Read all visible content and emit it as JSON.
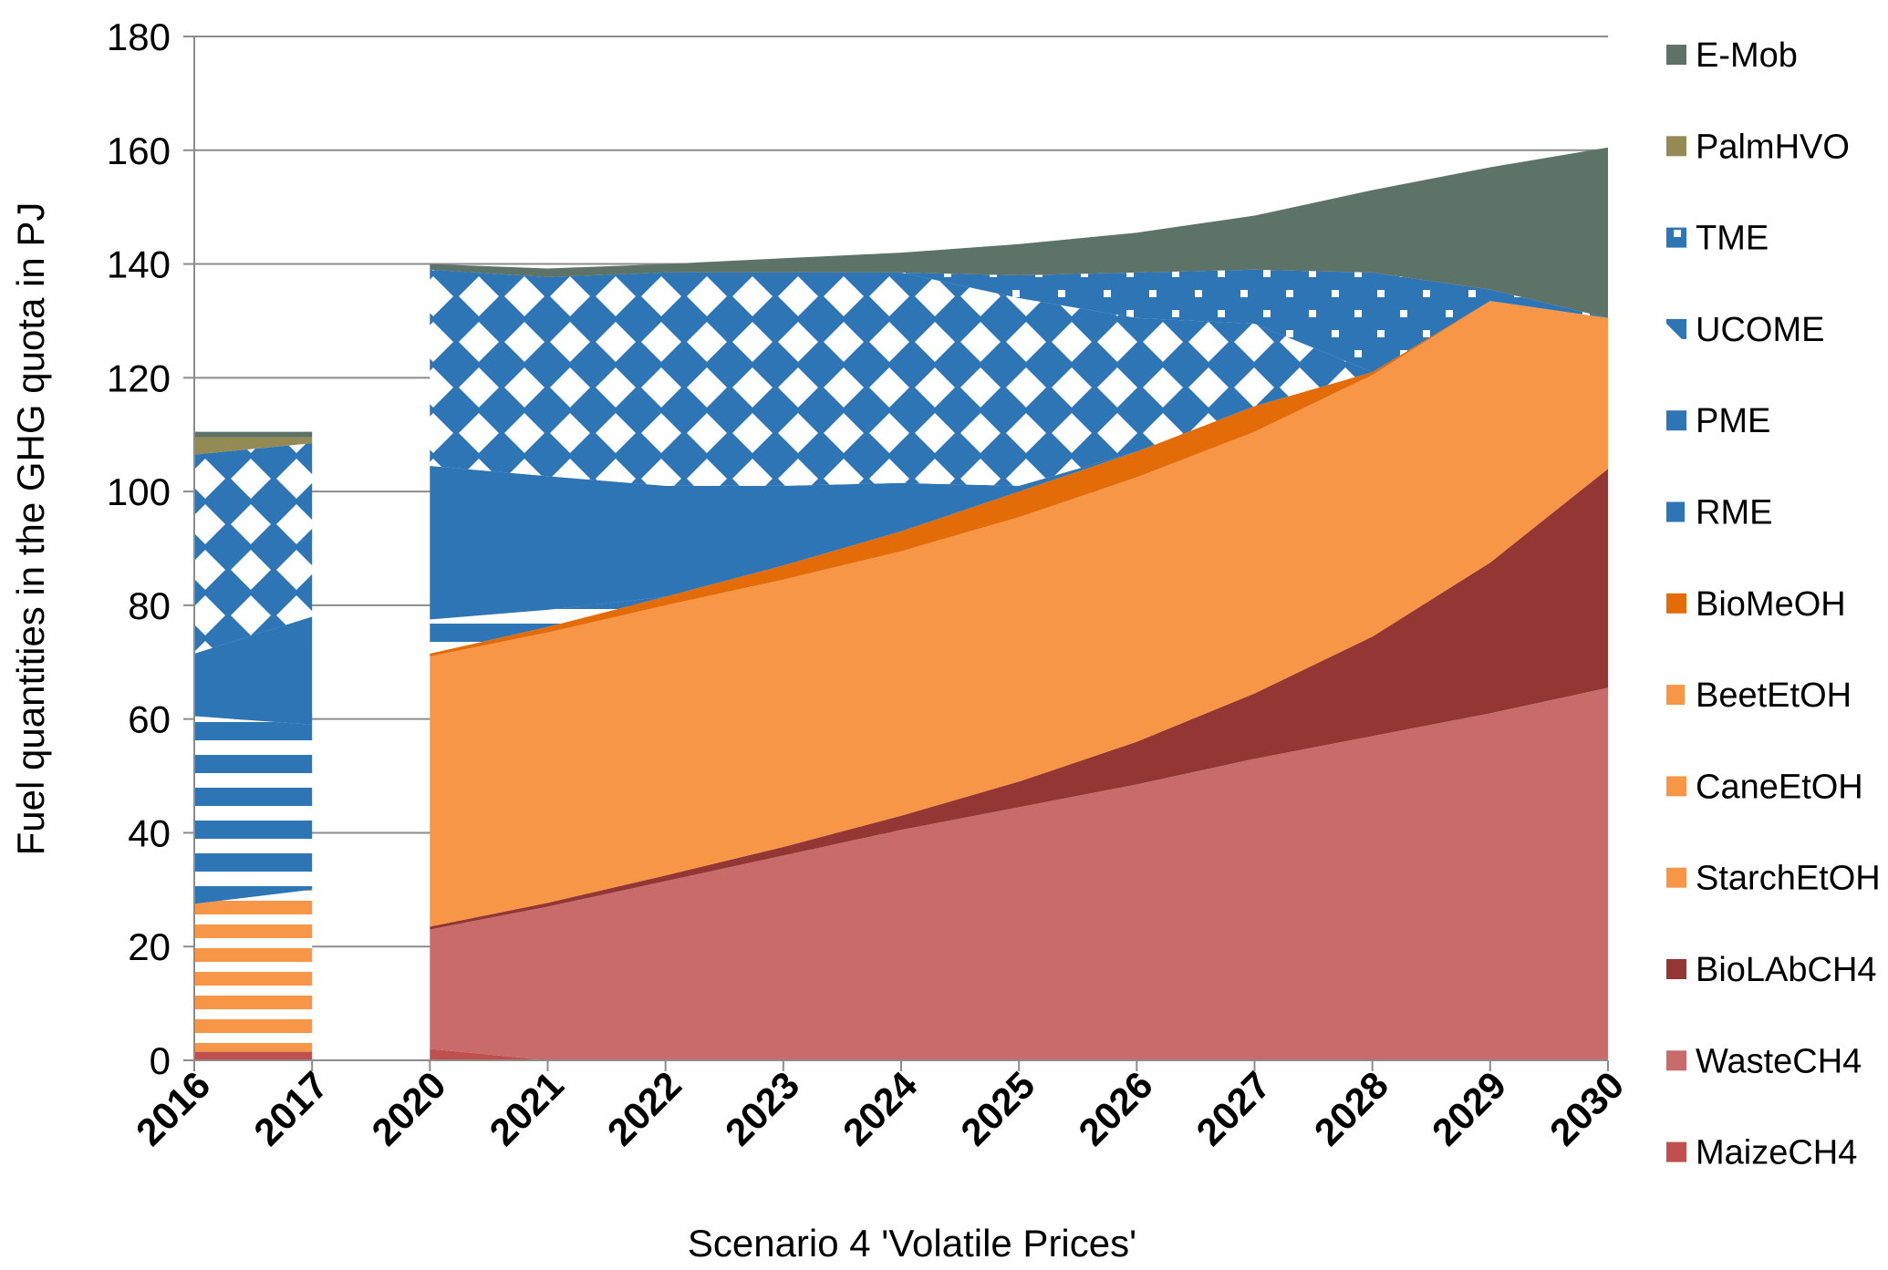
{
  "chart_data": {
    "type": "area",
    "stacked": true,
    "title": "",
    "xlabel": "Scenario 4 'Volatile Prices'",
    "ylabel": "Fuel quantities in the GHG quota in PJ",
    "ylim": [
      0,
      180
    ],
    "yticks": [
      0,
      20,
      40,
      60,
      80,
      100,
      120,
      140,
      160,
      180
    ],
    "grid": "horizontal",
    "legend_position": "right",
    "categories": [
      "2016",
      "2017",
      "2020",
      "2021",
      "2022",
      "2023",
      "2024",
      "2025",
      "2026",
      "2027",
      "2028",
      "2029",
      "2030"
    ],
    "gap_after_index": 1,
    "series": [
      {
        "name": "MaizeCH4",
        "color": "#c0504d",
        "pattern": "solid",
        "values": [
          1.5,
          1.5,
          2,
          0,
          0,
          0,
          0,
          0,
          0,
          0,
          0,
          0,
          0
        ]
      },
      {
        "name": "WasteCH4",
        "color": "#c96b6b",
        "pattern": "solid",
        "values": [
          0,
          0,
          21,
          27,
          31.5,
          36,
          40.5,
          44.5,
          48.5,
          53,
          57,
          61,
          65.5
        ]
      },
      {
        "name": "BioLAbCH4",
        "color": "#943634",
        "pattern": "solid",
        "values": [
          0,
          0,
          0.5,
          0.7,
          1,
          1.5,
          2.5,
          4.5,
          7.5,
          11.5,
          17.5,
          26.5,
          38.5
        ]
      },
      {
        "name": "StarchEtOH",
        "color": "#f79646",
        "pattern": "solid",
        "values": [
          0,
          0,
          47.5,
          47.5,
          47.5,
          47,
          46.5,
          46.5,
          46.5,
          46,
          46,
          46,
          26.5
        ]
      },
      {
        "name": "CaneEtOH",
        "color": "#f79646",
        "pattern": "solid",
        "values": [
          0,
          0,
          0,
          0,
          0,
          0,
          0,
          0,
          0,
          0,
          0,
          0,
          0
        ]
      },
      {
        "name": "BeetEtOH",
        "color": "#f79646",
        "pattern": "hstripes",
        "values": [
          26,
          28.5,
          0,
          0,
          0,
          0,
          0,
          0,
          0,
          0,
          0,
          0,
          0
        ]
      },
      {
        "name": "BioMeOH",
        "color": "#e36c09",
        "pattern": "solid",
        "values": [
          0,
          0,
          0.5,
          1,
          1.5,
          2.5,
          3.5,
          4.5,
          4.5,
          4.5,
          0.5,
          0,
          0
        ]
      },
      {
        "name": "RME",
        "color": "#2e75b6",
        "pattern": "hstripes",
        "values": [
          33,
          29,
          6,
          3,
          0,
          0,
          0,
          0,
          0,
          0,
          0,
          0,
          0
        ]
      },
      {
        "name": "PME",
        "color": "#2e75b6",
        "pattern": "solid",
        "values": [
          11,
          19,
          27,
          23.5,
          19.5,
          14,
          8.5,
          1,
          0,
          0,
          0,
          0,
          0
        ]
      },
      {
        "name": "UCOME",
        "color": "#2e75b6",
        "pattern": "diamonds",
        "values": [
          35,
          30.5,
          34.5,
          35,
          37.5,
          37.5,
          37,
          33,
          23.5,
          14.5,
          0,
          0,
          0
        ]
      },
      {
        "name": "TME",
        "color": "#2e75b6",
        "pattern": "dots",
        "values": [
          0,
          0,
          0,
          0,
          0,
          0,
          0,
          4,
          8,
          9.5,
          17.5,
          2,
          0
        ]
      },
      {
        "name": "PalmHVO",
        "color": "#948a54",
        "pattern": "solid",
        "values": [
          3,
          1,
          0,
          0,
          0,
          0,
          0,
          0,
          0,
          0,
          0,
          0,
          0
        ]
      },
      {
        "name": "E-Mob",
        "color": "#5e7368",
        "pattern": "solid",
        "values": [
          1,
          1,
          1,
          1.5,
          1.5,
          2.5,
          3.5,
          5.5,
          7,
          9.5,
          14.5,
          21.5,
          30
        ]
      }
    ],
    "legend_order": [
      "E-Mob",
      "PalmHVO",
      "TME",
      "UCOME",
      "PME",
      "RME",
      "BioMeOH",
      "BeetEtOH",
      "CaneEtOH",
      "StarchEtOH",
      "BioLAbCH4",
      "WasteCH4",
      "MaizeCH4"
    ]
  }
}
